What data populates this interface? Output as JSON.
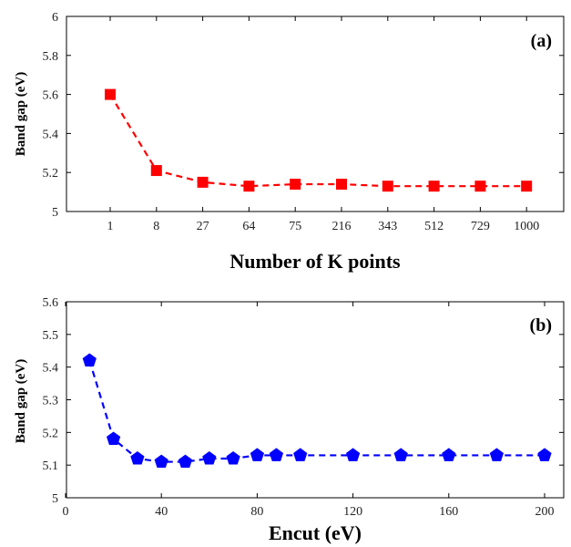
{
  "chart_data": [
    {
      "type": "line",
      "panel_label": "(a)",
      "xlabel": "Number of K points",
      "ylabel": "Band gap (eV)",
      "x_scale": "categorical",
      "categories": [
        "1",
        "8",
        "27",
        "64",
        "75",
        "216",
        "343",
        "512",
        "729",
        "1000"
      ],
      "ylim": [
        5,
        6
      ],
      "yticks": [
        "5",
        "5.2",
        "5.4",
        "5.6",
        "5.8",
        "6"
      ],
      "grid": false,
      "series": [
        {
          "values": [
            5.6,
            5.21,
            5.15,
            5.13,
            5.14,
            5.14,
            5.13,
            5.13,
            5.13,
            5.13
          ],
          "color": "#ff0000",
          "marker": "square",
          "line_style": "dashed"
        }
      ]
    },
    {
      "type": "line",
      "panel_label": "(b)",
      "xlabel": "Encut (eV)",
      "ylabel": "Band gap (eV)",
      "xlim": [
        0,
        210
      ],
      "xticks": [
        "0",
        "40",
        "80",
        "120",
        "160",
        "200"
      ],
      "ylim": [
        5,
        5.6
      ],
      "yticks": [
        "5",
        "5.1",
        "5.2",
        "5.3",
        "5.4",
        "5.5",
        "5.6"
      ],
      "grid": false,
      "series": [
        {
          "x": [
            10,
            20,
            30,
            40,
            50,
            60,
            70,
            80,
            88,
            98,
            120,
            140,
            160,
            180,
            200
          ],
          "values": [
            5.42,
            5.18,
            5.12,
            5.11,
            5.11,
            5.12,
            5.12,
            5.13,
            5.13,
            5.13,
            5.13,
            5.13,
            5.13,
            5.13,
            5.13
          ],
          "color": "#0000ff",
          "marker": "pentagon",
          "line_style": "dashed"
        }
      ]
    }
  ]
}
